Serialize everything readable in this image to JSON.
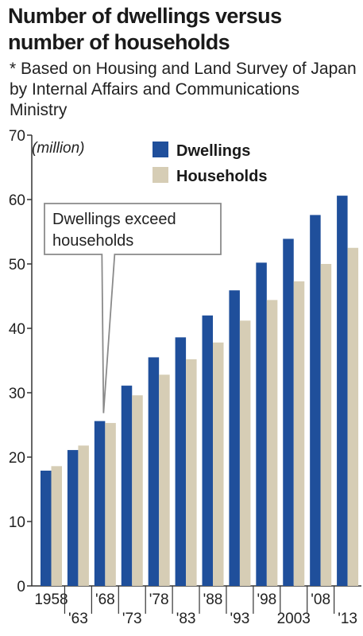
{
  "title": "Number of dwellings versus number of households",
  "note": "* Based on Housing and Land Survey of Japan by Internal Affairs and Communications Ministry",
  "chart_data": {
    "type": "bar",
    "unit_label": "(million)",
    "categories": [
      "1958",
      "'63",
      "'68",
      "'73",
      "'78",
      "'83",
      "'88",
      "'93",
      "'98",
      "2003",
      "'08",
      "'13"
    ],
    "series": [
      {
        "name": "Dwellings",
        "color": "#1f4f9b",
        "values": [
          17.9,
          21.1,
          25.6,
          31.1,
          35.5,
          38.6,
          42.0,
          45.9,
          50.2,
          53.9,
          57.6,
          60.6
        ]
      },
      {
        "name": "Households",
        "color": "#d6cdb5",
        "values": [
          18.6,
          21.8,
          25.3,
          29.6,
          32.8,
          35.2,
          37.8,
          41.2,
          44.4,
          47.3,
          50.0,
          52.5
        ]
      }
    ],
    "ylim": [
      0,
      70
    ],
    "yticks": [
      0,
      10,
      20,
      30,
      40,
      50,
      60,
      70
    ],
    "legend_position": "top-right",
    "annotation": {
      "lines": [
        "Dwellings exceed",
        "households"
      ],
      "category_index": 2
    }
  }
}
